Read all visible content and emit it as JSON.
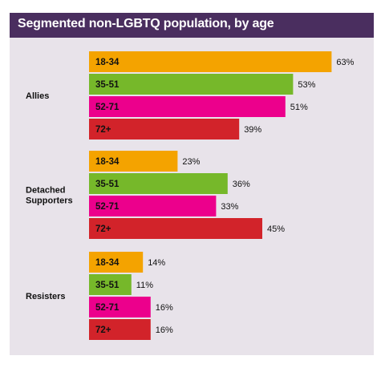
{
  "title": "Segmented non-LGBTQ population, by age",
  "colors": {
    "title_bar": "#4a2e5f",
    "panel": "#e8e3ea",
    "18-34": "#f4a300",
    "35-51": "#76b82a",
    "52-71": "#ec008c",
    "72+": "#d2232a"
  },
  "chart_data": {
    "type": "bar",
    "orientation": "horizontal",
    "title": "Segmented non-LGBTQ population, by age",
    "value_suffix": "%",
    "xlim": [
      0,
      70
    ],
    "groups": [
      {
        "name": "Allies",
        "bars": [
          {
            "label": "18-34",
            "value": 63
          },
          {
            "label": "35-51",
            "value": 53
          },
          {
            "label": "52-71",
            "value": 51
          },
          {
            "label": "72+",
            "value": 39
          }
        ]
      },
      {
        "name": "Detached Supporters",
        "name_lines": [
          "Detached",
          "Supporters"
        ],
        "bars": [
          {
            "label": "18-34",
            "value": 23
          },
          {
            "label": "35-51",
            "value": 36
          },
          {
            "label": "52-71",
            "value": 33
          },
          {
            "label": "72+",
            "value": 45
          }
        ]
      },
      {
        "name": "Resisters",
        "bars": [
          {
            "label": "18-34",
            "value": 14
          },
          {
            "label": "35-51",
            "value": 11
          },
          {
            "label": "52-71",
            "value": 16
          },
          {
            "label": "72+",
            "value": 16
          }
        ]
      }
    ]
  }
}
